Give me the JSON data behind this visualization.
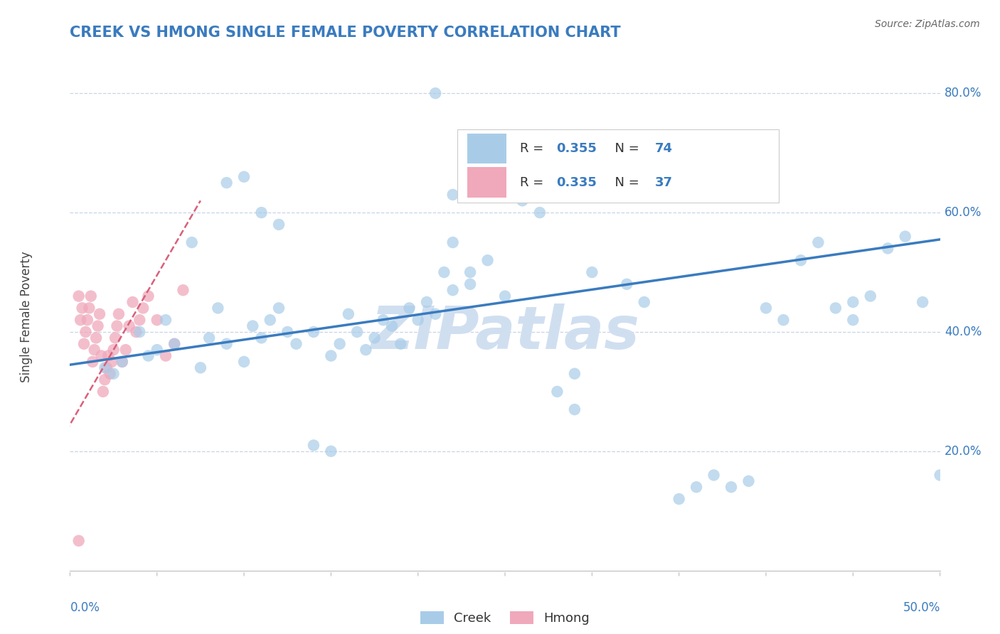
{
  "title": "CREEK VS HMONG SINGLE FEMALE POVERTY CORRELATION CHART",
  "source": "Source: ZipAtlas.com",
  "ylabel": "Single Female Poverty",
  "creek_R": 0.355,
  "creek_N": 74,
  "hmong_R": 0.335,
  "hmong_N": 37,
  "creek_color": "#a8cce8",
  "hmong_color": "#f0a8bb",
  "creek_line_color": "#3a7bbf",
  "hmong_line_color": "#d9607a",
  "title_color": "#3a7bbf",
  "watermark": "ZIPatlas",
  "watermark_color": "#d0dff0",
  "background_color": "#ffffff",
  "grid_color": "#c8d4e8",
  "xlim": [
    0.0,
    0.5
  ],
  "ylim": [
    0.0,
    0.85
  ],
  "yticks": [
    0.2,
    0.4,
    0.6,
    0.8
  ],
  "ytick_labels": [
    "20.0%",
    "40.0%",
    "60.0%",
    "80.0%"
  ],
  "creek_scatter_x": [
    0.02,
    0.025,
    0.03,
    0.04,
    0.045,
    0.05,
    0.055,
    0.06,
    0.07,
    0.075,
    0.08,
    0.085,
    0.09,
    0.1,
    0.105,
    0.11,
    0.115,
    0.12,
    0.125,
    0.13,
    0.14,
    0.15,
    0.155,
    0.16,
    0.165,
    0.17,
    0.175,
    0.18,
    0.185,
    0.19,
    0.195,
    0.2,
    0.205,
    0.21,
    0.215,
    0.22,
    0.23,
    0.24,
    0.25,
    0.26,
    0.27,
    0.28,
    0.29,
    0.3,
    0.32,
    0.33,
    0.35,
    0.36,
    0.37,
    0.38,
    0.39,
    0.4,
    0.41,
    0.42,
    0.43,
    0.44,
    0.45,
    0.46,
    0.47,
    0.48,
    0.49,
    0.21,
    0.22,
    0.23,
    0.14,
    0.15,
    0.09,
    0.1,
    0.11,
    0.12,
    0.22,
    0.45,
    0.5,
    0.29
  ],
  "creek_scatter_y": [
    0.34,
    0.33,
    0.35,
    0.4,
    0.36,
    0.37,
    0.42,
    0.38,
    0.55,
    0.34,
    0.39,
    0.44,
    0.38,
    0.35,
    0.41,
    0.39,
    0.42,
    0.44,
    0.4,
    0.38,
    0.4,
    0.36,
    0.38,
    0.43,
    0.4,
    0.37,
    0.39,
    0.42,
    0.41,
    0.38,
    0.44,
    0.42,
    0.45,
    0.43,
    0.5,
    0.55,
    0.48,
    0.52,
    0.46,
    0.62,
    0.6,
    0.3,
    0.33,
    0.5,
    0.48,
    0.45,
    0.12,
    0.14,
    0.16,
    0.14,
    0.15,
    0.44,
    0.42,
    0.52,
    0.55,
    0.44,
    0.42,
    0.46,
    0.54,
    0.56,
    0.45,
    0.8,
    0.63,
    0.5,
    0.21,
    0.2,
    0.65,
    0.66,
    0.6,
    0.58,
    0.47,
    0.45,
    0.16,
    0.27
  ],
  "hmong_scatter_x": [
    0.005,
    0.006,
    0.007,
    0.008,
    0.009,
    0.01,
    0.011,
    0.012,
    0.013,
    0.014,
    0.015,
    0.016,
    0.017,
    0.018,
    0.019,
    0.02,
    0.021,
    0.022,
    0.023,
    0.024,
    0.025,
    0.026,
    0.027,
    0.028,
    0.03,
    0.032,
    0.034,
    0.036,
    0.038,
    0.04,
    0.042,
    0.045,
    0.05,
    0.055,
    0.06,
    0.065,
    0.005
  ],
  "hmong_scatter_y": [
    0.46,
    0.42,
    0.44,
    0.38,
    0.4,
    0.42,
    0.44,
    0.46,
    0.35,
    0.37,
    0.39,
    0.41,
    0.43,
    0.36,
    0.3,
    0.32,
    0.34,
    0.36,
    0.33,
    0.35,
    0.37,
    0.39,
    0.41,
    0.43,
    0.35,
    0.37,
    0.41,
    0.45,
    0.4,
    0.42,
    0.44,
    0.46,
    0.42,
    0.36,
    0.38,
    0.47,
    0.05
  ],
  "creek_trend_x": [
    0.0,
    0.5
  ],
  "creek_trend_y": [
    0.345,
    0.555
  ],
  "hmong_trend_x": [
    -0.005,
    0.075
  ],
  "hmong_trend_y": [
    0.22,
    0.62
  ]
}
